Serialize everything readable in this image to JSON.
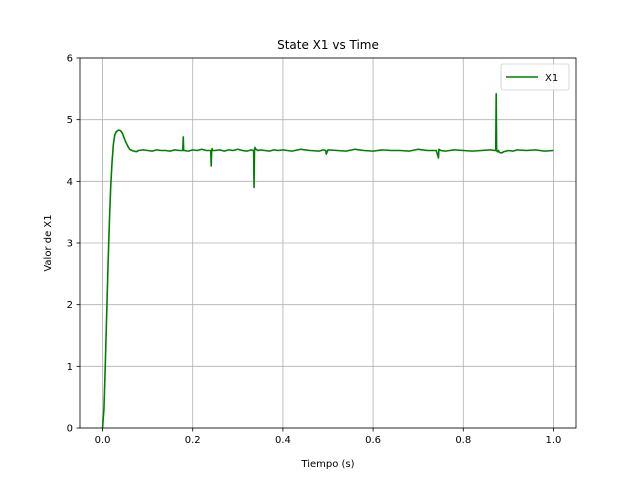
{
  "chart_data": {
    "type": "line",
    "title": "State X1 vs Time",
    "xlabel": "Tiempo (s)",
    "ylabel": "Valor de X1",
    "xlim": [
      -0.05,
      1.05
    ],
    "ylim": [
      0,
      6
    ],
    "x_ticks": [
      0.0,
      0.2,
      0.4,
      0.6,
      0.8,
      1.0
    ],
    "x_tick_labels": [
      "0.0",
      "0.2",
      "0.4",
      "0.6",
      "0.8",
      "1.0"
    ],
    "y_ticks": [
      0,
      1,
      2,
      3,
      4,
      5,
      6
    ],
    "y_tick_labels": [
      "0",
      "1",
      "2",
      "3",
      "4",
      "5",
      "6"
    ],
    "grid": true,
    "legend_position": "top-right",
    "series": [
      {
        "name": "X1",
        "color": "#008000",
        "x": [
          0.0,
          0.003,
          0.006,
          0.009,
          0.012,
          0.015,
          0.018,
          0.021,
          0.024,
          0.027,
          0.03,
          0.033,
          0.036,
          0.04,
          0.044,
          0.048,
          0.052,
          0.056,
          0.06,
          0.065,
          0.07,
          0.075,
          0.08,
          0.09,
          0.1,
          0.11,
          0.12,
          0.13,
          0.14,
          0.15,
          0.16,
          0.17,
          0.178,
          0.179,
          0.18,
          0.181,
          0.19,
          0.2,
          0.21,
          0.22,
          0.23,
          0.24,
          0.241,
          0.242,
          0.243,
          0.244,
          0.25,
          0.26,
          0.27,
          0.28,
          0.29,
          0.3,
          0.31,
          0.32,
          0.33,
          0.335,
          0.336,
          0.337,
          0.338,
          0.34,
          0.345,
          0.35,
          0.36,
          0.37,
          0.38,
          0.39,
          0.4,
          0.42,
          0.44,
          0.46,
          0.48,
          0.49,
          0.495,
          0.496,
          0.5,
          0.52,
          0.54,
          0.56,
          0.58,
          0.6,
          0.62,
          0.64,
          0.66,
          0.68,
          0.7,
          0.72,
          0.74,
          0.745,
          0.746,
          0.75,
          0.76,
          0.78,
          0.8,
          0.82,
          0.84,
          0.86,
          0.87,
          0.872,
          0.873,
          0.874,
          0.876,
          0.878,
          0.88,
          0.885,
          0.89,
          0.9,
          0.91,
          0.92,
          0.94,
          0.96,
          0.98,
          1.0
        ],
        "y": [
          0.0,
          0.3,
          1.0,
          1.8,
          2.6,
          3.3,
          3.9,
          4.3,
          4.6,
          4.75,
          4.8,
          4.82,
          4.83,
          4.82,
          4.78,
          4.7,
          4.63,
          4.57,
          4.52,
          4.5,
          4.49,
          4.48,
          4.5,
          4.51,
          4.5,
          4.49,
          4.51,
          4.5,
          4.5,
          4.49,
          4.51,
          4.5,
          4.5,
          4.72,
          4.5,
          4.5,
          4.49,
          4.51,
          4.5,
          4.52,
          4.5,
          4.5,
          4.25,
          4.5,
          4.53,
          4.5,
          4.5,
          4.51,
          4.49,
          4.51,
          4.5,
          4.52,
          4.5,
          4.49,
          4.51,
          4.5,
          3.9,
          4.5,
          4.55,
          4.52,
          4.5,
          4.51,
          4.5,
          4.49,
          4.51,
          4.5,
          4.51,
          4.49,
          4.52,
          4.5,
          4.49,
          4.51,
          4.5,
          4.44,
          4.51,
          4.5,
          4.49,
          4.52,
          4.5,
          4.49,
          4.51,
          4.5,
          4.5,
          4.49,
          4.52,
          4.5,
          4.5,
          4.38,
          4.52,
          4.5,
          4.49,
          4.51,
          4.5,
          4.49,
          4.5,
          4.51,
          4.5,
          4.5,
          5.42,
          4.5,
          4.48,
          4.5,
          4.47,
          4.46,
          4.48,
          4.5,
          4.49,
          4.51,
          4.5,
          4.51,
          4.49,
          4.5
        ]
      }
    ]
  }
}
